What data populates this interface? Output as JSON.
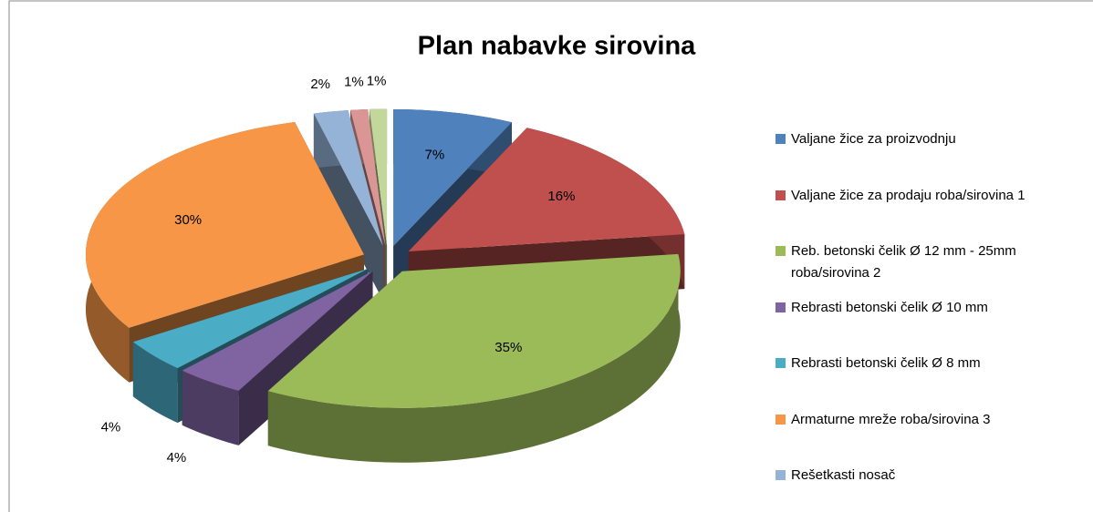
{
  "chart_data": {
    "type": "pie3d",
    "title": "Plan nabavke sirovina",
    "categories": [
      "Valjane žice za proizvodnju",
      "Valjane žice za prodaju roba/sirovina 1",
      "Reb. betonski čelik Ø 12 mm - 25mm roba/sirovina 2",
      "Rebrasti betonski čelik Ø 10 mm",
      "Rebrasti betonski čelik Ø  8 mm",
      "Armaturne mreže roba/sirovina 3",
      "Rešetkasti nosač",
      null,
      null
    ],
    "values": [
      7,
      16,
      35,
      4,
      4,
      30,
      2,
      1,
      1
    ],
    "value_labels": [
      "7%",
      "16%",
      "35%",
      "4%",
      "4%",
      "30%",
      "2%",
      "1%",
      "1%"
    ],
    "colors": [
      "#4f81bd",
      "#c0504d",
      "#9bbb59",
      "#8064a2",
      "#4bacc6",
      "#f79646",
      "#95b3d7",
      "#d99694",
      "#c3d69b"
    ],
    "legend": "right"
  }
}
